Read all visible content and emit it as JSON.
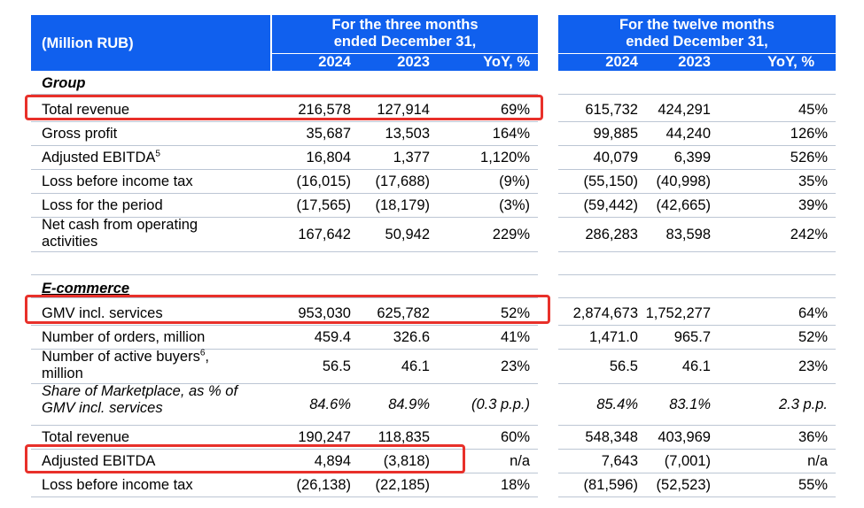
{
  "header": {
    "unit_label": "(Million RUB)",
    "left_group": {
      "title_line1": "For the three months",
      "title_line2": "ended December 31,",
      "columns": [
        "2024",
        "2023",
        "YoY, %"
      ]
    },
    "right_group": {
      "title_line1": "For the twelve months",
      "title_line2": "ended December 31,",
      "columns": [
        "2024",
        "2023",
        "YoY, %"
      ]
    }
  },
  "sections": [
    {
      "title": "Group",
      "rows": [
        {
          "label": "Total revenue",
          "values": [
            "216,578",
            "127,914",
            "69%",
            "615,732",
            "424,291",
            "45%"
          ],
          "highlighted": true
        },
        {
          "label": "Gross profit",
          "values": [
            "35,687",
            "13,503",
            "164%",
            "99,885",
            "44,240",
            "126%"
          ]
        },
        {
          "label": "Adjusted EBITDA",
          "footnote": "5",
          "values": [
            "16,804",
            "1,377",
            "1,120%",
            "40,079",
            "6,399",
            "526%"
          ]
        },
        {
          "label": "Loss before income tax",
          "values": [
            "(16,015)",
            "(17,688)",
            "(9%)",
            "(55,150)",
            "(40,998)",
            "35%"
          ]
        },
        {
          "label": "Loss for the period",
          "values": [
            "(17,565)",
            "(18,179)",
            "(3%)",
            "(59,442)",
            "(42,665)",
            "39%"
          ]
        },
        {
          "label_line1": "Net cash from operating",
          "label_line2": "activities",
          "values": [
            "167,642",
            "50,942",
            "229%",
            "286,283",
            "83,598",
            "242%"
          ]
        }
      ]
    },
    {
      "title": "E-commerce",
      "rows": [
        {
          "label": "GMV incl. services",
          "values": [
            "953,030",
            "625,782",
            "52%",
            "2,874,673",
            "1,752,277",
            "64%"
          ],
          "highlighted": true
        },
        {
          "label": "Number of orders, million",
          "values": [
            "459.4",
            "326.6",
            "41%",
            "1,471.0",
            "965.7",
            "52%"
          ]
        },
        {
          "label_line1": "Number of active buyers",
          "footnote": "6",
          "label_line1_suffix": ",",
          "label_line2": "million",
          "values": [
            "56.5",
            "46.1",
            "23%",
            "56.5",
            "46.1",
            "23%"
          ]
        },
        {
          "label_line1": "Share of Marketplace, as % of",
          "label_line2": "GMV incl. services",
          "italic": true,
          "values": [
            "84.6%",
            "84.9%",
            "(0.3 p.p.)",
            "85.4%",
            "83.1%",
            "2.3 p.p."
          ]
        },
        {
          "label": "Total revenue",
          "values": [
            "190,247",
            "118,835",
            "60%",
            "548,348",
            "403,969",
            "36%"
          ]
        },
        {
          "label": "Adjusted EBITDA",
          "values": [
            "4,894",
            "(3,818)",
            "n/a",
            "7,643",
            "(7,001)",
            "n/a"
          ],
          "highlighted": true
        },
        {
          "label": "Loss before income tax",
          "values": [
            "(26,138)",
            "(22,185)",
            "18%",
            "(81,596)",
            "(52,523)",
            "55%"
          ]
        }
      ]
    }
  ],
  "colors": {
    "header_blue": "#1060ee",
    "highlight_red": "#e8302a",
    "rule_grey": "#bcc6d4"
  }
}
